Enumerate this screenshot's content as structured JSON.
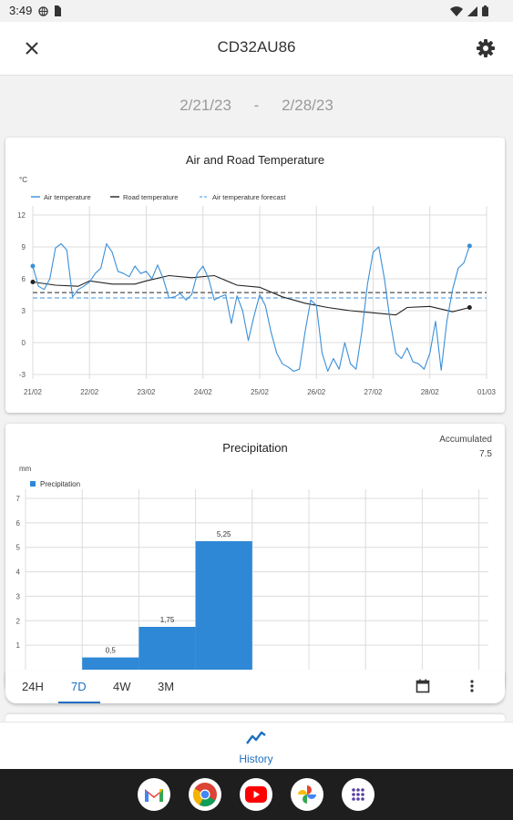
{
  "status_bar": {
    "time": "3:49"
  },
  "app_bar": {
    "title": "CD32AU86"
  },
  "date_range": {
    "start": "2/21/23",
    "separator": "-",
    "end": "2/28/23"
  },
  "temperature_card": {
    "title": "Air and Road Temperature",
    "unit": "°C"
  },
  "precipitation_card": {
    "title": "Precipitation",
    "unit": "mm",
    "accumulated_label": "Accumulated",
    "accumulated_value": "7.5"
  },
  "range_tabs": [
    {
      "label": "24H",
      "active": false
    },
    {
      "label": "7D",
      "active": true
    },
    {
      "label": "4W",
      "active": false
    },
    {
      "label": "3M",
      "active": false
    }
  ],
  "bottom_nav": {
    "label": "History"
  },
  "dock_apps": [
    "gmail-icon",
    "chrome-icon",
    "youtube-icon",
    "photos-icon",
    "app-drawer-icon"
  ],
  "colors": {
    "air": "#3a8fd9",
    "road": "#222222",
    "bar": "#2f88d6",
    "accent": "#1f6fbf"
  },
  "chart_data": [
    {
      "type": "line",
      "title": "Air and Road Temperature",
      "ylabel": "°C",
      "ylim": [
        -3,
        12
      ],
      "y_ticks": [
        "12",
        "9",
        "6",
        "3",
        "0",
        "-3"
      ],
      "x_ticks": [
        "21/02",
        "22/02",
        "23/02",
        "24/02",
        "25/02",
        "26/02",
        "27/02",
        "28/02",
        "01/03"
      ],
      "legend_position": "top-left",
      "series": [
        {
          "name": "Air temperature",
          "style": "solid",
          "color": "#3a8fd9",
          "x": [
            0,
            0.1,
            0.2,
            0.3,
            0.4,
            0.5,
            0.6,
            0.7,
            0.8,
            0.9,
            1.0,
            1.1,
            1.2,
            1.3,
            1.4,
            1.5,
            1.6,
            1.7,
            1.8,
            1.9,
            2.0,
            2.1,
            2.2,
            2.3,
            2.4,
            2.5,
            2.6,
            2.7,
            2.8,
            2.9,
            3.0,
            3.1,
            3.2,
            3.3,
            3.4,
            3.5,
            3.6,
            3.7,
            3.8,
            3.9,
            4.0,
            4.1,
            4.2,
            4.3,
            4.4,
            4.5,
            4.6,
            4.7,
            4.8,
            4.9,
            5.0,
            5.1,
            5.2,
            5.3,
            5.4,
            5.5,
            5.6,
            5.7,
            5.8,
            5.9,
            6.0,
            6.1,
            6.2,
            6.3,
            6.4,
            6.5,
            6.6,
            6.7,
            6.8,
            6.9,
            7.0,
            7.1,
            7.2,
            7.3,
            7.4,
            7.5,
            7.6,
            7.7
          ],
          "y": [
            7.2,
            5.3,
            5.0,
            6.0,
            8.9,
            9.3,
            8.7,
            4.3,
            5.0,
            5.3,
            5.7,
            6.5,
            7.0,
            9.3,
            8.5,
            6.7,
            6.5,
            6.2,
            7.2,
            6.5,
            6.7,
            6.0,
            7.3,
            6.0,
            4.2,
            4.3,
            4.6,
            4.0,
            4.5,
            6.5,
            7.2,
            6.0,
            4.0,
            4.3,
            4.5,
            1.8,
            4.4,
            3.0,
            0.2,
            2.5,
            4.5,
            3.5,
            1.0,
            -1.0,
            -2.0,
            -2.3,
            -2.7,
            -2.5,
            1.0,
            4.0,
            3.5,
            -1.0,
            -2.7,
            -1.5,
            -2.5,
            0,
            -2.0,
            -2.5,
            1.0,
            5.5,
            8.5,
            9.0,
            6.0,
            2.0,
            -1.0,
            -1.5,
            -0.5,
            -1.8,
            -2.0,
            -2.5,
            -1.0,
            2.0,
            -2.6,
            2.0,
            5.0,
            7.0,
            7.5,
            9.1
          ]
        },
        {
          "name": "Road temperature",
          "style": "solid",
          "color": "#222222",
          "x": [
            0,
            0.4,
            0.8,
            1.0,
            1.4,
            1.8,
            2.0,
            2.4,
            2.8,
            3.2,
            3.6,
            4.0,
            4.4,
            4.8,
            5.2,
            5.6,
            6.0,
            6.4,
            6.6,
            7.0,
            7.4,
            7.7
          ],
          "y": [
            5.7,
            5.4,
            5.3,
            5.8,
            5.5,
            5.5,
            5.8,
            6.3,
            6.1,
            6.3,
            5.4,
            5.2,
            4.3,
            3.7,
            3.3,
            3.0,
            2.8,
            2.6,
            3.3,
            3.4,
            2.9,
            3.3
          ]
        },
        {
          "name": "Air temperature forecast",
          "style": "dashed",
          "color": "#3a8fd9",
          "x": [
            0,
            8
          ],
          "y": [
            4.2,
            4.2
          ]
        }
      ],
      "road_forecast_level": 4.7
    },
    {
      "type": "bar",
      "title": "Precipitation",
      "ylabel": "mm",
      "ylim": [
        0,
        7
      ],
      "y_ticks": [
        "7",
        "6",
        "5",
        "4",
        "3",
        "2",
        "1"
      ],
      "legend_position": "top-left",
      "series": [
        {
          "name": "Precipitation",
          "color": "#2f88d6",
          "x_start": [
            1,
            2,
            3
          ],
          "x_end": [
            2,
            3,
            4
          ],
          "values": [
            0.5,
            1.75,
            5.25
          ],
          "labels": [
            "0,5",
            "1,75",
            "5,25"
          ]
        }
      ]
    }
  ]
}
